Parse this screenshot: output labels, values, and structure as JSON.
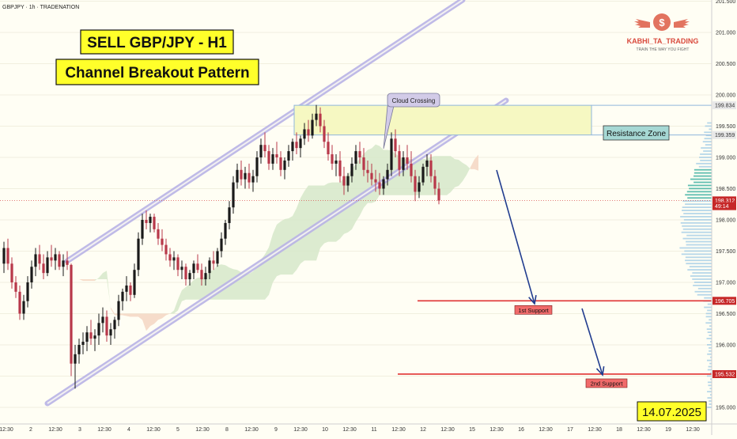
{
  "header": {
    "symbol_line": "GBPJPY · 1h · TRADENATION"
  },
  "titles": {
    "line1": "SELL GBP/JPY - H1",
    "line2": "Channel Breakout Pattern"
  },
  "logo": {
    "brand": "KABHI_TA_TRADING",
    "tagline": "TRAIN THE WAY YOU FIGHT",
    "coin_symbol": "$"
  },
  "annotations": {
    "cloud_crossing": "Cloud Crossing",
    "resistance_zone": "Resistance Zone",
    "support1": "1st Support",
    "support2": "2nd Support",
    "date": "14.07.2025"
  },
  "colors": {
    "background": "#fffef4",
    "title_fill": "#ffff2a",
    "bull": "#1a1a1a",
    "bear": "#b8384a",
    "channel": "#b9b3e6",
    "zone_fill": "#f6f8c2",
    "zone_stroke": "#8fb6dc",
    "support_line": "#e03333",
    "arrow": "#223d8f",
    "cloud_green": "#d6e8c9",
    "cloud_red": "#f5d6c2",
    "price_badge": "#c62828"
  },
  "chart_data": {
    "type": "candlestick",
    "y_axis": {
      "ticks": [
        "195.000",
        "195.500",
        "196.000",
        "196.500",
        "197.000",
        "197.500",
        "198.000",
        "198.500",
        "199.000",
        "199.500",
        "200.000",
        "200.500",
        "201.000",
        "201.500"
      ],
      "range": [
        194.75,
        201.75
      ],
      "labels": [
        {
          "value": 199.834,
          "text": "199.834",
          "style": "gray"
        },
        {
          "value": 199.359,
          "text": "199.359",
          "style": "gray"
        },
        {
          "value": 198.312,
          "text": "198.312",
          "style": "red"
        },
        {
          "value": 198.22,
          "text": "49:14",
          "style": "red"
        },
        {
          "value": 196.705,
          "text": "196.705",
          "style": "red"
        },
        {
          "value": 195.532,
          "text": "195.532",
          "style": "red"
        }
      ]
    },
    "x_axis": {
      "ticks": [
        "12:30",
        "2",
        "12:30",
        "3",
        "12:30",
        "4",
        "12:30",
        "5",
        "12:30",
        "8",
        "12:30",
        "9",
        "12:30",
        "10",
        "12:30",
        "11",
        "12:30",
        "12",
        "12:30",
        "15",
        "12:30",
        "16",
        "12:30",
        "17",
        "12:30",
        "18",
        "12:30",
        "19",
        "12:30"
      ]
    },
    "levels": {
      "resistance_zone": [
        199.359,
        199.834
      ],
      "support1": 196.705,
      "support2": 195.532,
      "last_price": 198.312
    },
    "channel": {
      "upper": [
        [
          "2025-07-02 09:00",
          197.5
        ],
        [
          "2025-07-10 18:00",
          201.9
        ]
      ],
      "lower": [
        [
          "2025-07-01 18:00",
          195.1
        ],
        [
          "2025-07-12 18:00",
          199.9
        ]
      ]
    },
    "ohlc": [
      [
        197.3,
        197.65,
        197.15,
        197.55
      ],
      [
        197.55,
        197.7,
        197.2,
        197.3
      ],
      [
        197.3,
        197.4,
        196.9,
        197.0
      ],
      [
        197.0,
        197.1,
        196.75,
        196.85
      ],
      [
        196.85,
        196.95,
        196.4,
        196.5
      ],
      [
        196.5,
        196.8,
        196.4,
        196.7
      ],
      [
        196.7,
        197.1,
        196.6,
        197.0
      ],
      [
        197.0,
        197.35,
        196.9,
        197.25
      ],
      [
        197.25,
        197.55,
        197.1,
        197.45
      ],
      [
        197.45,
        197.6,
        197.2,
        197.3
      ],
      [
        197.3,
        197.45,
        197.05,
        197.15
      ],
      [
        197.15,
        197.5,
        197.1,
        197.4
      ],
      [
        197.4,
        197.6,
        197.25,
        197.35
      ],
      [
        197.35,
        197.55,
        197.2,
        197.45
      ],
      [
        197.45,
        197.5,
        197.2,
        197.25
      ],
      [
        197.25,
        197.45,
        197.1,
        197.35
      ],
      [
        197.35,
        197.5,
        197.2,
        197.28
      ],
      [
        197.28,
        197.3,
        195.5,
        195.7
      ],
      [
        195.7,
        196.0,
        195.3,
        195.85
      ],
      [
        195.85,
        196.1,
        195.7,
        196.0
      ],
      [
        196.0,
        196.2,
        195.85,
        196.05
      ],
      [
        196.05,
        196.3,
        195.9,
        196.2
      ],
      [
        196.2,
        196.4,
        196.0,
        196.1
      ],
      [
        196.1,
        196.25,
        195.9,
        196.15
      ],
      [
        196.15,
        196.5,
        196.0,
        196.35
      ],
      [
        196.35,
        196.6,
        196.2,
        196.45
      ],
      [
        196.45,
        196.55,
        196.05,
        196.15
      ],
      [
        196.15,
        196.35,
        196.0,
        196.25
      ],
      [
        196.25,
        196.45,
        196.1,
        196.4
      ],
      [
        196.4,
        196.8,
        196.3,
        196.7
      ],
      [
        196.7,
        196.9,
        196.55,
        196.85
      ],
      [
        196.85,
        197.1,
        196.7,
        196.95
      ],
      [
        196.95,
        197.0,
        196.7,
        196.8
      ],
      [
        196.8,
        197.3,
        196.75,
        197.2
      ],
      [
        197.2,
        197.8,
        197.1,
        197.7
      ],
      [
        197.7,
        198.1,
        197.6,
        198.0
      ],
      [
        198.0,
        198.15,
        197.85,
        197.95
      ],
      [
        197.95,
        198.1,
        197.8,
        198.05
      ],
      [
        198.05,
        198.1,
        197.8,
        197.85
      ],
      [
        197.85,
        197.95,
        197.6,
        197.7
      ],
      [
        197.7,
        197.85,
        197.5,
        197.6
      ],
      [
        197.6,
        197.7,
        197.35,
        197.45
      ],
      [
        197.45,
        197.55,
        197.25,
        197.35
      ],
      [
        197.35,
        197.5,
        197.2,
        197.4
      ],
      [
        197.4,
        197.45,
        197.1,
        197.2
      ],
      [
        197.2,
        197.35,
        197.05,
        197.25
      ],
      [
        197.25,
        197.3,
        196.95,
        197.05
      ],
      [
        197.05,
        197.2,
        196.95,
        197.15
      ],
      [
        197.15,
        197.35,
        197.05,
        197.3
      ],
      [
        197.3,
        197.45,
        197.15,
        197.2
      ],
      [
        197.2,
        197.3,
        196.95,
        197.05
      ],
      [
        197.05,
        197.25,
        196.95,
        197.15
      ],
      [
        197.15,
        197.4,
        197.05,
        197.35
      ],
      [
        197.35,
        197.5,
        197.2,
        197.3
      ],
      [
        197.3,
        197.55,
        197.25,
        197.5
      ],
      [
        197.5,
        197.8,
        197.4,
        197.7
      ],
      [
        197.7,
        198.0,
        197.6,
        197.95
      ],
      [
        197.95,
        198.3,
        197.85,
        198.2
      ],
      [
        198.2,
        198.7,
        198.1,
        198.6
      ],
      [
        198.6,
        198.9,
        198.5,
        198.8
      ],
      [
        198.8,
        198.95,
        198.55,
        198.65
      ],
      [
        198.65,
        198.85,
        198.5,
        198.75
      ],
      [
        198.75,
        198.9,
        198.5,
        198.6
      ],
      [
        198.6,
        198.8,
        198.45,
        198.7
      ],
      [
        198.7,
        199.1,
        198.6,
        199.0
      ],
      [
        199.0,
        199.3,
        198.9,
        199.2
      ],
      [
        199.2,
        199.4,
        199.0,
        199.1
      ],
      [
        199.1,
        199.2,
        198.8,
        198.9
      ],
      [
        198.9,
        199.15,
        198.8,
        199.05
      ],
      [
        199.05,
        199.25,
        198.9,
        199.0
      ],
      [
        199.0,
        199.1,
        198.7,
        198.8
      ],
      [
        198.8,
        199.0,
        198.65,
        198.95
      ],
      [
        198.95,
        199.2,
        198.85,
        199.1
      ],
      [
        199.1,
        199.3,
        198.95,
        199.25
      ],
      [
        199.25,
        199.4,
        199.05,
        199.15
      ],
      [
        199.15,
        199.35,
        199.0,
        199.3
      ],
      [
        199.3,
        199.55,
        199.2,
        199.45
      ],
      [
        199.45,
        199.6,
        199.25,
        199.35
      ],
      [
        199.35,
        199.7,
        199.3,
        199.6
      ],
      [
        199.6,
        199.84,
        199.5,
        199.7
      ],
      [
        199.7,
        199.8,
        199.4,
        199.5
      ],
      [
        199.5,
        199.6,
        199.15,
        199.25
      ],
      [
        199.25,
        199.4,
        198.95,
        199.05
      ],
      [
        199.05,
        199.2,
        198.8,
        198.9
      ],
      [
        198.9,
        199.05,
        198.7,
        198.95
      ],
      [
        198.95,
        199.1,
        198.6,
        198.7
      ],
      [
        198.7,
        198.85,
        198.4,
        198.55
      ],
      [
        198.55,
        198.75,
        198.45,
        198.7
      ],
      [
        198.7,
        199.0,
        198.6,
        198.9
      ],
      [
        198.9,
        199.2,
        198.8,
        199.1
      ],
      [
        199.1,
        199.25,
        198.9,
        199.0
      ],
      [
        199.0,
        199.15,
        198.7,
        198.8
      ],
      [
        198.8,
        198.95,
        198.6,
        198.75
      ],
      [
        198.75,
        198.9,
        198.55,
        198.65
      ],
      [
        198.65,
        198.8,
        198.45,
        198.6
      ],
      [
        198.6,
        198.75,
        198.4,
        198.5
      ],
      [
        198.5,
        198.7,
        198.4,
        198.65
      ],
      [
        198.65,
        198.9,
        198.55,
        198.8
      ],
      [
        198.8,
        199.4,
        198.7,
        199.3
      ],
      [
        199.3,
        199.45,
        199.0,
        199.1
      ],
      [
        199.1,
        199.2,
        198.7,
        198.8
      ],
      [
        198.8,
        199.1,
        198.7,
        199.0
      ],
      [
        199.0,
        199.2,
        198.8,
        198.9
      ],
      [
        198.9,
        199.1,
        198.6,
        198.7
      ],
      [
        198.7,
        198.8,
        198.3,
        198.45
      ],
      [
        198.45,
        198.7,
        198.35,
        198.6
      ],
      [
        198.6,
        198.9,
        198.55,
        198.85
      ],
      [
        198.85,
        199.05,
        198.7,
        198.95
      ],
      [
        198.95,
        199.05,
        198.6,
        198.7
      ],
      [
        198.7,
        198.8,
        198.4,
        198.5
      ],
      [
        198.5,
        198.6,
        198.25,
        198.31
      ]
    ]
  }
}
